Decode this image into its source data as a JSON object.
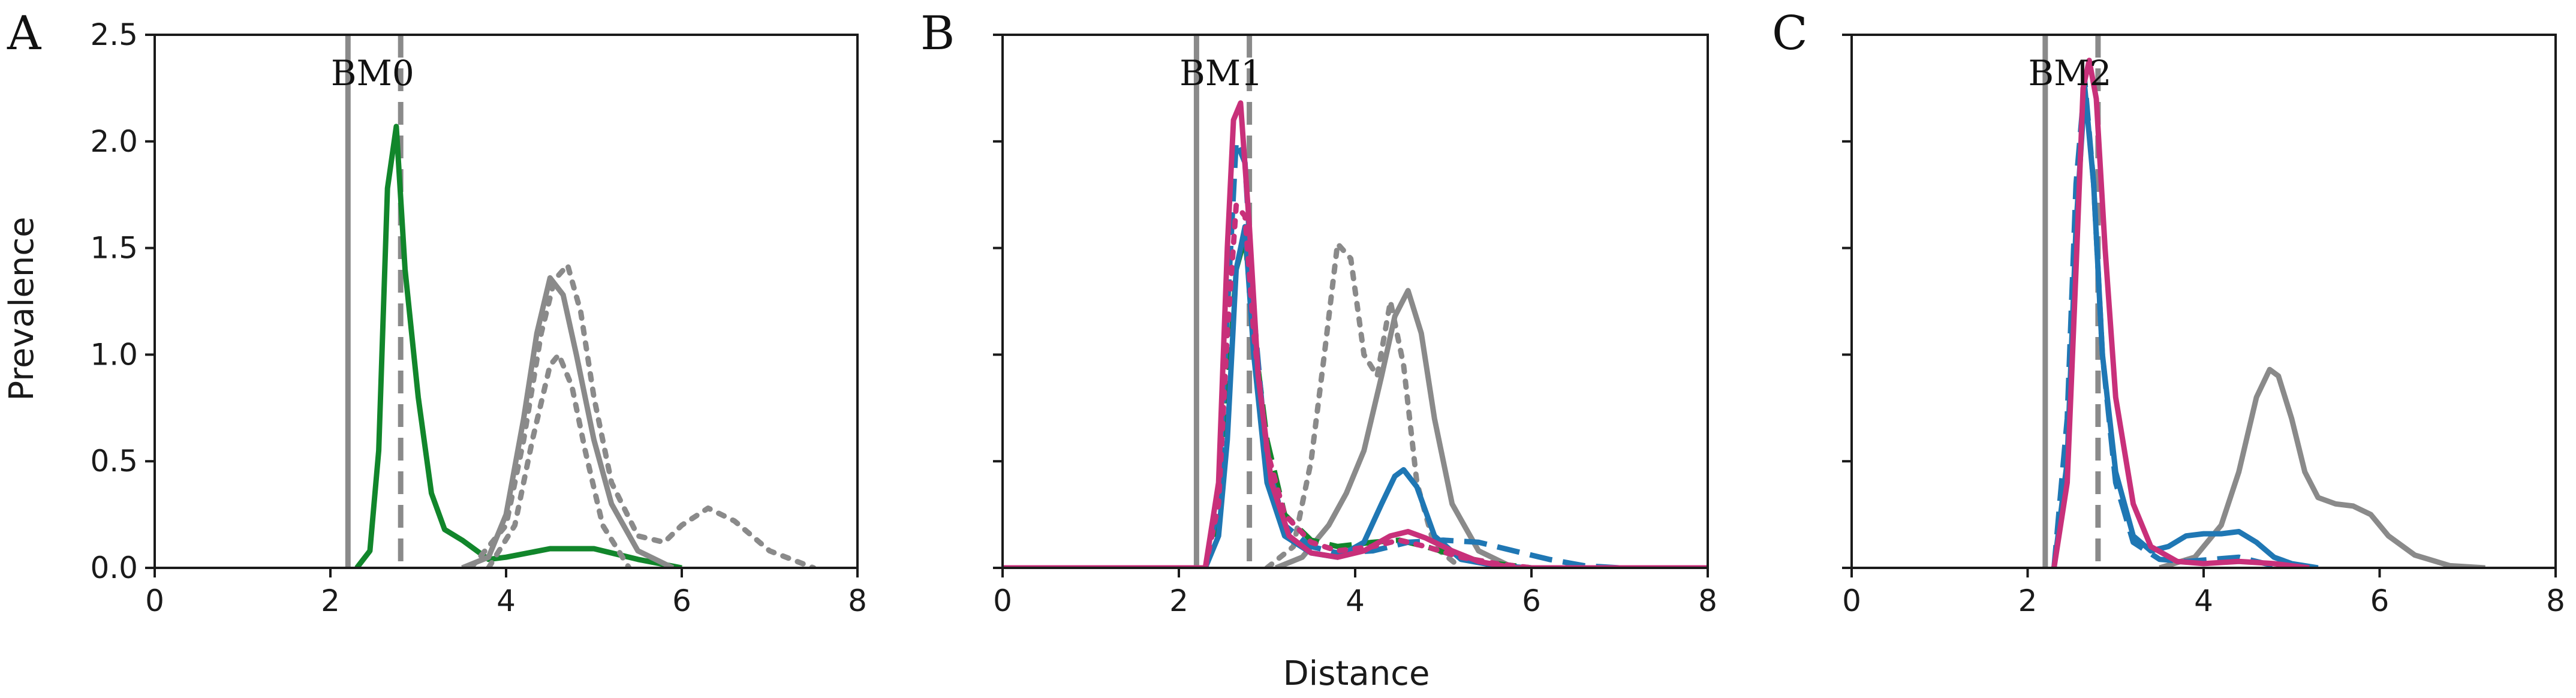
{
  "ylabel": "Prevalence",
  "xlabel": "Distance",
  "colors": {
    "gray": "#8a8a8a",
    "green": "#11862b",
    "blue": "#1f77b4",
    "magenta": "#c8307a"
  },
  "chart_data": [
    {
      "type": "line",
      "panel_letter": "A",
      "title": "BM0",
      "xlim": [
        0,
        8
      ],
      "ylim": [
        0,
        2.5
      ],
      "xticks": [
        "0",
        "2",
        "4",
        "6",
        "8"
      ],
      "yticks": [
        "0.0",
        "0.5",
        "1.0",
        "1.5",
        "2.0",
        "2.5"
      ],
      "show_yticklabels": true,
      "vlines": [
        {
          "x": 2.2,
          "style": "solid",
          "color": "gray"
        },
        {
          "x": 2.8,
          "style": "dashed",
          "color": "gray"
        }
      ],
      "series": [
        {
          "color": "green",
          "style": "solid",
          "x": [
            2.3,
            2.45,
            2.55,
            2.65,
            2.75,
            2.85,
            3.0,
            3.15,
            3.3,
            3.5,
            3.8,
            4.0,
            4.5,
            5.0,
            5.5,
            6.0
          ],
          "y": [
            0.0,
            0.08,
            0.55,
            1.78,
            2.07,
            1.4,
            0.8,
            0.35,
            0.18,
            0.13,
            0.04,
            0.05,
            0.09,
            0.09,
            0.04,
            0.0
          ]
        },
        {
          "color": "gray",
          "style": "solid",
          "x": [
            3.5,
            3.8,
            4.0,
            4.2,
            4.35,
            4.5,
            4.65,
            4.8,
            5.0,
            5.2,
            5.5,
            5.9
          ],
          "y": [
            0.0,
            0.05,
            0.25,
            0.7,
            1.1,
            1.36,
            1.28,
            1.0,
            0.6,
            0.3,
            0.08,
            0.0
          ]
        },
        {
          "color": "gray",
          "style": "dotted",
          "x": [
            3.6,
            4.0,
            4.2,
            4.4,
            4.55,
            4.7,
            4.85,
            5.0,
            5.2,
            5.5,
            5.8,
            6.0,
            6.3,
            6.6,
            7.0,
            7.5
          ],
          "y": [
            0.0,
            0.2,
            0.6,
            1.1,
            1.35,
            1.42,
            1.2,
            0.8,
            0.4,
            0.15,
            0.12,
            0.2,
            0.28,
            0.22,
            0.08,
            0.0
          ]
        },
        {
          "color": "gray",
          "style": "dotted",
          "x": [
            3.8,
            4.1,
            4.3,
            4.5,
            4.6,
            4.75,
            4.9,
            5.1,
            5.4
          ],
          "y": [
            0.0,
            0.2,
            0.6,
            0.95,
            1.0,
            0.85,
            0.55,
            0.2,
            0.0
          ]
        }
      ]
    },
    {
      "type": "line",
      "panel_letter": "B",
      "title": "BM1",
      "xlim": [
        0,
        8
      ],
      "ylim": [
        0,
        2.5
      ],
      "xticks": [
        "0",
        "2",
        "4",
        "6",
        "8"
      ],
      "yticks": [
        "0.0",
        "0.5",
        "1.0",
        "1.5",
        "2.0",
        "2.5"
      ],
      "show_yticklabels": false,
      "vlines": [
        {
          "x": 2.2,
          "style": "solid",
          "color": "gray"
        },
        {
          "x": 2.8,
          "style": "dashed",
          "color": "gray"
        }
      ],
      "series": [
        {
          "color": "gray",
          "style": "solid",
          "x": [
            3.1,
            3.4,
            3.7,
            3.9,
            4.1,
            4.3,
            4.45,
            4.6,
            4.75,
            4.9,
            5.1,
            5.4,
            5.8
          ],
          "y": [
            0.0,
            0.05,
            0.2,
            0.35,
            0.55,
            0.9,
            1.18,
            1.3,
            1.1,
            0.7,
            0.3,
            0.08,
            0.0
          ]
        },
        {
          "color": "gray",
          "style": "dotted",
          "x": [
            3.0,
            3.3,
            3.5,
            3.65,
            3.8,
            3.95,
            4.1,
            4.25,
            4.4,
            4.55,
            4.7,
            4.9,
            5.2
          ],
          "y": [
            0.0,
            0.1,
            0.5,
            1.0,
            1.52,
            1.45,
            1.0,
            0.9,
            1.25,
            0.95,
            0.4,
            0.1,
            0.0
          ]
        },
        {
          "color": "green",
          "style": "dashed",
          "x": [
            0.0,
            2.3,
            2.45,
            2.55,
            2.65,
            2.75,
            2.85,
            3.0,
            3.2,
            3.5,
            3.8,
            4.2,
            4.5,
            4.8,
            5.2,
            5.6,
            6.0,
            8.0
          ],
          "y": [
            0.0,
            0.0,
            0.2,
            0.8,
            1.4,
            1.55,
            1.1,
            0.6,
            0.25,
            0.13,
            0.1,
            0.12,
            0.13,
            0.1,
            0.05,
            0.02,
            0.0,
            0.0
          ]
        },
        {
          "color": "blue",
          "style": "solid",
          "x": [
            0.0,
            2.3,
            2.45,
            2.55,
            2.65,
            2.75,
            2.85,
            3.0,
            3.2,
            3.5,
            3.8,
            4.1,
            4.3,
            4.45,
            4.55,
            4.7,
            4.9,
            5.2,
            5.6,
            6.0,
            8.0
          ],
          "y": [
            0.0,
            0.0,
            0.15,
            0.6,
            1.4,
            1.6,
            1.0,
            0.4,
            0.15,
            0.07,
            0.05,
            0.12,
            0.3,
            0.43,
            0.46,
            0.38,
            0.15,
            0.04,
            0.01,
            0.0,
            0.0
          ]
        },
        {
          "color": "blue",
          "style": "dashed",
          "x": [
            0.0,
            2.3,
            2.45,
            2.55,
            2.65,
            2.75,
            2.85,
            3.0,
            3.2,
            3.5,
            3.8,
            4.2,
            4.6,
            5.0,
            5.4,
            5.8,
            6.2,
            6.6,
            7.0,
            8.0
          ],
          "y": [
            0.0,
            0.0,
            0.3,
            1.2,
            2.0,
            1.9,
            1.2,
            0.5,
            0.2,
            0.1,
            0.07,
            0.08,
            0.12,
            0.13,
            0.12,
            0.08,
            0.04,
            0.01,
            0.0,
            0.0
          ]
        },
        {
          "color": "magenta",
          "style": "solid",
          "x": [
            0.0,
            2.3,
            2.45,
            2.55,
            2.62,
            2.7,
            2.8,
            2.9,
            3.05,
            3.25,
            3.5,
            3.8,
            4.1,
            4.4,
            4.6,
            4.8,
            5.1,
            5.4,
            5.8,
            8.0
          ],
          "y": [
            0.0,
            0.0,
            0.4,
            1.5,
            2.1,
            2.18,
            1.6,
            0.9,
            0.4,
            0.15,
            0.07,
            0.05,
            0.08,
            0.15,
            0.17,
            0.14,
            0.08,
            0.03,
            0.0,
            0.0
          ]
        },
        {
          "color": "magenta",
          "style": "dotted",
          "x": [
            0.0,
            2.3,
            2.45,
            2.55,
            2.65,
            2.75,
            2.85,
            3.0,
            3.2,
            3.5,
            3.8,
            4.2,
            4.5,
            4.8,
            5.2,
            5.6,
            6.0,
            8.0
          ],
          "y": [
            0.0,
            0.0,
            0.3,
            1.1,
            1.7,
            1.65,
            1.1,
            0.55,
            0.25,
            0.12,
            0.08,
            0.1,
            0.13,
            0.1,
            0.05,
            0.02,
            0.0,
            0.0
          ]
        }
      ]
    },
    {
      "type": "line",
      "panel_letter": "C",
      "title": "BM2",
      "xlim": [
        0,
        8
      ],
      "ylim": [
        0,
        2.5
      ],
      "xticks": [
        "0",
        "2",
        "4",
        "6",
        "8"
      ],
      "yticks": [
        "0.0",
        "0.5",
        "1.0",
        "1.5",
        "2.0",
        "2.5"
      ],
      "show_yticklabels": false,
      "vlines": [
        {
          "x": 2.2,
          "style": "solid",
          "color": "gray"
        },
        {
          "x": 2.8,
          "style": "dashed",
          "color": "gray"
        }
      ],
      "series": [
        {
          "color": "gray",
          "style": "solid",
          "x": [
            3.5,
            3.9,
            4.2,
            4.4,
            4.6,
            4.75,
            4.85,
            5.0,
            5.15,
            5.3,
            5.5,
            5.7,
            5.9,
            6.1,
            6.4,
            6.8,
            7.2
          ],
          "y": [
            0.0,
            0.05,
            0.2,
            0.45,
            0.8,
            0.93,
            0.9,
            0.7,
            0.45,
            0.33,
            0.3,
            0.29,
            0.25,
            0.15,
            0.06,
            0.01,
            0.0
          ]
        },
        {
          "color": "blue",
          "style": "solid",
          "x": [
            2.3,
            2.45,
            2.55,
            2.65,
            2.75,
            2.85,
            3.0,
            3.2,
            3.4,
            3.6,
            3.8,
            4.0,
            4.2,
            4.4,
            4.6,
            4.8,
            5.0,
            5.3
          ],
          "y": [
            0.0,
            0.5,
            1.6,
            2.25,
            1.8,
            1.0,
            0.45,
            0.15,
            0.08,
            0.1,
            0.15,
            0.16,
            0.16,
            0.17,
            0.12,
            0.05,
            0.02,
            0.0
          ]
        },
        {
          "color": "blue",
          "style": "dashed",
          "x": [
            2.3,
            2.45,
            2.55,
            2.65,
            2.75,
            2.85,
            3.0,
            3.2,
            3.5,
            3.8,
            4.1,
            4.4,
            4.7,
            5.0
          ],
          "y": [
            0.0,
            0.7,
            1.8,
            2.28,
            1.8,
            1.0,
            0.4,
            0.12,
            0.04,
            0.03,
            0.04,
            0.05,
            0.02,
            0.0
          ]
        },
        {
          "color": "magenta",
          "style": "solid",
          "x": [
            2.3,
            2.45,
            2.55,
            2.63,
            2.7,
            2.78,
            2.88,
            3.0,
            3.2,
            3.4,
            3.7,
            4.0,
            4.4,
            4.8,
            5.2
          ],
          "y": [
            0.0,
            0.4,
            1.4,
            2.25,
            2.38,
            2.2,
            1.5,
            0.8,
            0.3,
            0.1,
            0.03,
            0.02,
            0.03,
            0.02,
            0.0
          ]
        }
      ]
    }
  ]
}
